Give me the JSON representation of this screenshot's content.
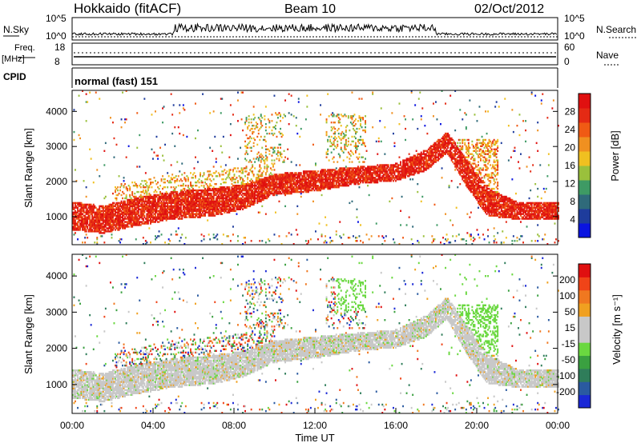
{
  "header": {
    "station": "Hokkaido (fitACF)",
    "beam": "Beam 10",
    "date": "02/Oct/2012"
  },
  "noise_panel": {
    "left_label": "N.Sky",
    "right_label": "N.Search",
    "y_ticks_left": [
      "10^5",
      "10^0"
    ],
    "y_ticks_right": [
      "10^5",
      "10^0"
    ]
  },
  "freq_panel": {
    "left_label_1": "Freq.",
    "left_label_2": "[MHz]",
    "right_label": "Nave",
    "y_ticks_left": [
      "18",
      "8"
    ],
    "y_ticks_right": [
      "60",
      "0"
    ]
  },
  "cpid_panel": {
    "label": "CPID",
    "value": "normal (fast) 151"
  },
  "colors": {
    "power_scale": [
      "#0a14e0",
      "#1e3c9c",
      "#2f6a7a",
      "#3e9a64",
      "#9ac03c",
      "#f0c020",
      "#f09020",
      "#f05a14",
      "#e42a14",
      "#e01010"
    ],
    "velocity_scale": [
      "#1a28d6",
      "#2a5aa0",
      "#2f7d5a",
      "#3aa040",
      "#6ad840",
      "#c8c8c8",
      "#c8c8c8",
      "#f0a020",
      "#f07820",
      "#f04418",
      "#e01010"
    ]
  },
  "chart_data": [
    {
      "type": "heatmap",
      "name": "power",
      "ylabel": "Slant Range [km]",
      "y_ticks": [
        1000,
        2000,
        3000,
        4000
      ],
      "ylim": [
        200,
        4600
      ],
      "xlim": [
        0,
        24
      ],
      "colorbar": {
        "label": "Power [dB]",
        "ticks": [
          "28",
          "24",
          "20",
          "16",
          "12",
          "8",
          "4"
        ],
        "range": [
          0,
          30
        ]
      },
      "main_echo_band": [
        {
          "t": 0,
          "lo": 600,
          "hi": 1400
        },
        {
          "t": 1.5,
          "lo": 500,
          "hi": 1300
        },
        {
          "t": 3,
          "lo": 700,
          "hi": 1500
        },
        {
          "t": 5,
          "lo": 900,
          "hi": 1700
        },
        {
          "t": 7,
          "lo": 1000,
          "hi": 1800
        },
        {
          "t": 8.5,
          "lo": 1200,
          "hi": 1900
        },
        {
          "t": 10,
          "lo": 1600,
          "hi": 2200
        },
        {
          "t": 12,
          "lo": 1700,
          "hi": 2300
        },
        {
          "t": 14,
          "lo": 1900,
          "hi": 2400
        },
        {
          "t": 16,
          "lo": 2000,
          "hi": 2500
        },
        {
          "t": 17.5,
          "lo": 2300,
          "hi": 2900
        },
        {
          "t": 18.5,
          "lo": 2800,
          "hi": 3400
        },
        {
          "t": 19.5,
          "lo": 1800,
          "hi": 2600
        },
        {
          "t": 20.5,
          "lo": 1000,
          "hi": 1800
        },
        {
          "t": 22,
          "lo": 900,
          "hi": 1400
        },
        {
          "t": 24,
          "lo": 900,
          "hi": 1400
        }
      ]
    },
    {
      "type": "heatmap",
      "name": "velocity",
      "ylabel": "Slant Range [km]",
      "y_ticks": [
        1000,
        2000,
        3000,
        4000
      ],
      "ylim": [
        200,
        4600
      ],
      "xlim": [
        0,
        24
      ],
      "xlabel": "Time UT",
      "x_ticks": [
        "00:00",
        "04:00",
        "08:00",
        "12:00",
        "16:00",
        "20:00",
        "00:00"
      ],
      "colorbar": {
        "label": "Velocity [m s⁻¹]",
        "ticks": [
          "200",
          "100",
          "50",
          "15",
          "-15",
          "-50",
          "-100",
          "-200"
        ],
        "range": [
          -250,
          250
        ]
      }
    }
  ]
}
